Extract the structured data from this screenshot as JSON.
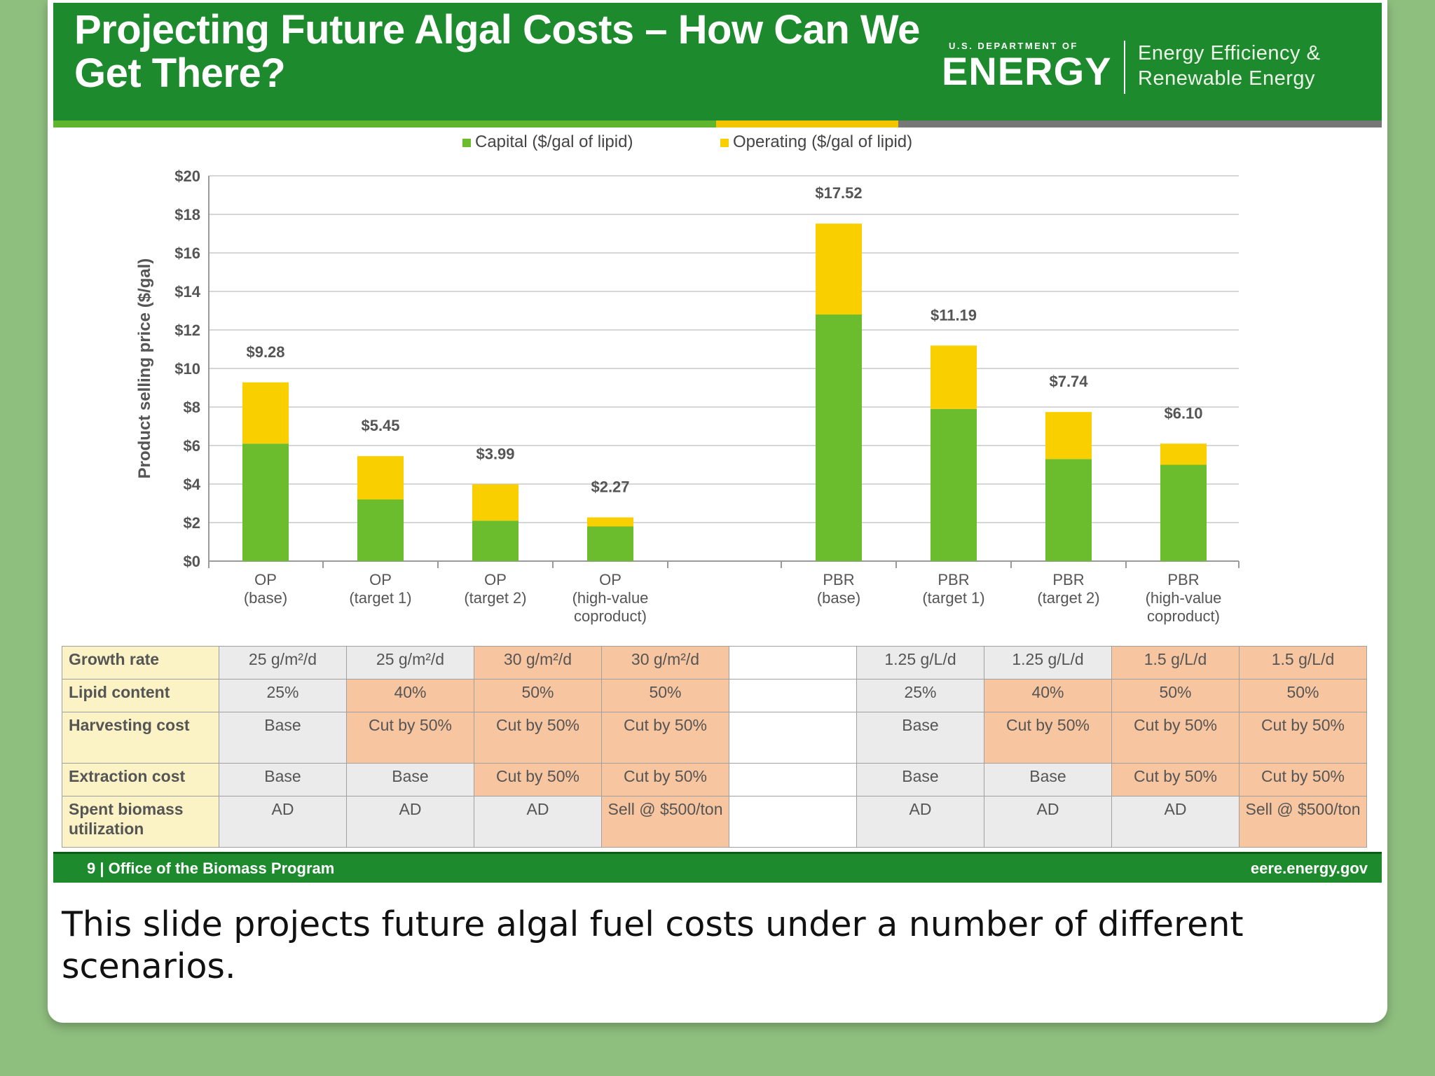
{
  "slide": {
    "title": "Projecting Future Algal Costs – How Can We Get There?",
    "logo": {
      "department": "U.S. DEPARTMENT OF",
      "energy": "ENERGY",
      "office_line1": "Energy Efficiency &",
      "office_line2": "Renewable Energy"
    },
    "footer": {
      "left": "9 | Office of the Biomass Program",
      "right": "eere.energy.gov"
    }
  },
  "colors": {
    "header_green": "#1d8a2e",
    "capital_green": "#6cbd2e",
    "operating_yellow": "#f9cf00",
    "baseline_cell": "#ebebeb",
    "changed_cell": "#f7c59f",
    "label_cell": "#fbf3c6"
  },
  "chart_data": {
    "type": "bar",
    "stacked": true,
    "ylabel": "Product selling price ($/gal)",
    "ylim": [
      0,
      20
    ],
    "yticks": [
      "$0",
      "$2",
      "$4",
      "$6",
      "$8",
      "$10",
      "$12",
      "$14",
      "$16",
      "$18",
      "$20"
    ],
    "grid": true,
    "legend_position": "top-center",
    "categories": [
      [
        "OP",
        "(base)"
      ],
      [
        "OP",
        "(target 1)"
      ],
      [
        "OP",
        "(target 2)"
      ],
      [
        "OP",
        "(high-value",
        "coproduct)"
      ],
      [
        "PBR",
        "(base)"
      ],
      [
        "PBR",
        "(target 1)"
      ],
      [
        "PBR",
        "(target 2)"
      ],
      [
        "PBR",
        "(high-value",
        "coproduct)"
      ]
    ],
    "series": [
      {
        "name": "Capital ($/gal of lipid)",
        "values": [
          6.1,
          3.2,
          2.1,
          1.8,
          12.8,
          7.9,
          5.3,
          5.0
        ]
      },
      {
        "name": "Operating ($/gal of lipid)",
        "values": [
          3.18,
          2.25,
          1.89,
          0.47,
          4.72,
          3.29,
          2.44,
          1.1
        ]
      }
    ],
    "totals": [
      9.28,
      5.45,
      3.99,
      2.27,
      17.52,
      11.19,
      7.74,
      6.1
    ],
    "total_labels": [
      "$9.28",
      "$5.45",
      "$3.99",
      "$2.27",
      "$17.52",
      "$11.19",
      "$7.74",
      "$6.10"
    ]
  },
  "table": {
    "rows": [
      {
        "label": "Growth rate",
        "cells": [
          "25 g/m²/d",
          "25 g/m²/d",
          "30 g/m²/d",
          "30 g/m²/d",
          "1.25 g/L/d",
          "1.25 g/L/d",
          "1.5 g/L/d",
          "1.5 g/L/d"
        ],
        "changed": [
          false,
          false,
          true,
          true,
          false,
          false,
          true,
          true
        ]
      },
      {
        "label": "Lipid content",
        "cells": [
          "25%",
          "40%",
          "50%",
          "50%",
          "25%",
          "40%",
          "50%",
          "50%"
        ],
        "changed": [
          false,
          true,
          true,
          true,
          false,
          true,
          true,
          true
        ]
      },
      {
        "label": "Harvesting cost",
        "cells": [
          "Base",
          "Cut by 50%",
          "Cut by 50%",
          "Cut by 50%",
          "Base",
          "Cut by 50%",
          "Cut by 50%",
          "Cut by 50%"
        ],
        "changed": [
          false,
          true,
          true,
          true,
          false,
          true,
          true,
          true
        ]
      },
      {
        "label": "Extraction cost",
        "cells": [
          "Base",
          "Base",
          "Cut by 50%",
          "Cut by 50%",
          "Base",
          "Base",
          "Cut by 50%",
          "Cut by 50%"
        ],
        "changed": [
          false,
          false,
          true,
          true,
          false,
          false,
          true,
          true
        ]
      },
      {
        "label": "Spent biomass utilization",
        "cells": [
          "AD",
          "AD",
          "AD",
          "Sell @ $500/ton",
          "AD",
          "AD",
          "AD",
          "Sell @ $500/ton"
        ],
        "changed": [
          false,
          false,
          false,
          true,
          false,
          false,
          false,
          true
        ]
      }
    ]
  },
  "caption": "This slide projects future algal fuel costs under a number of different scenarios."
}
